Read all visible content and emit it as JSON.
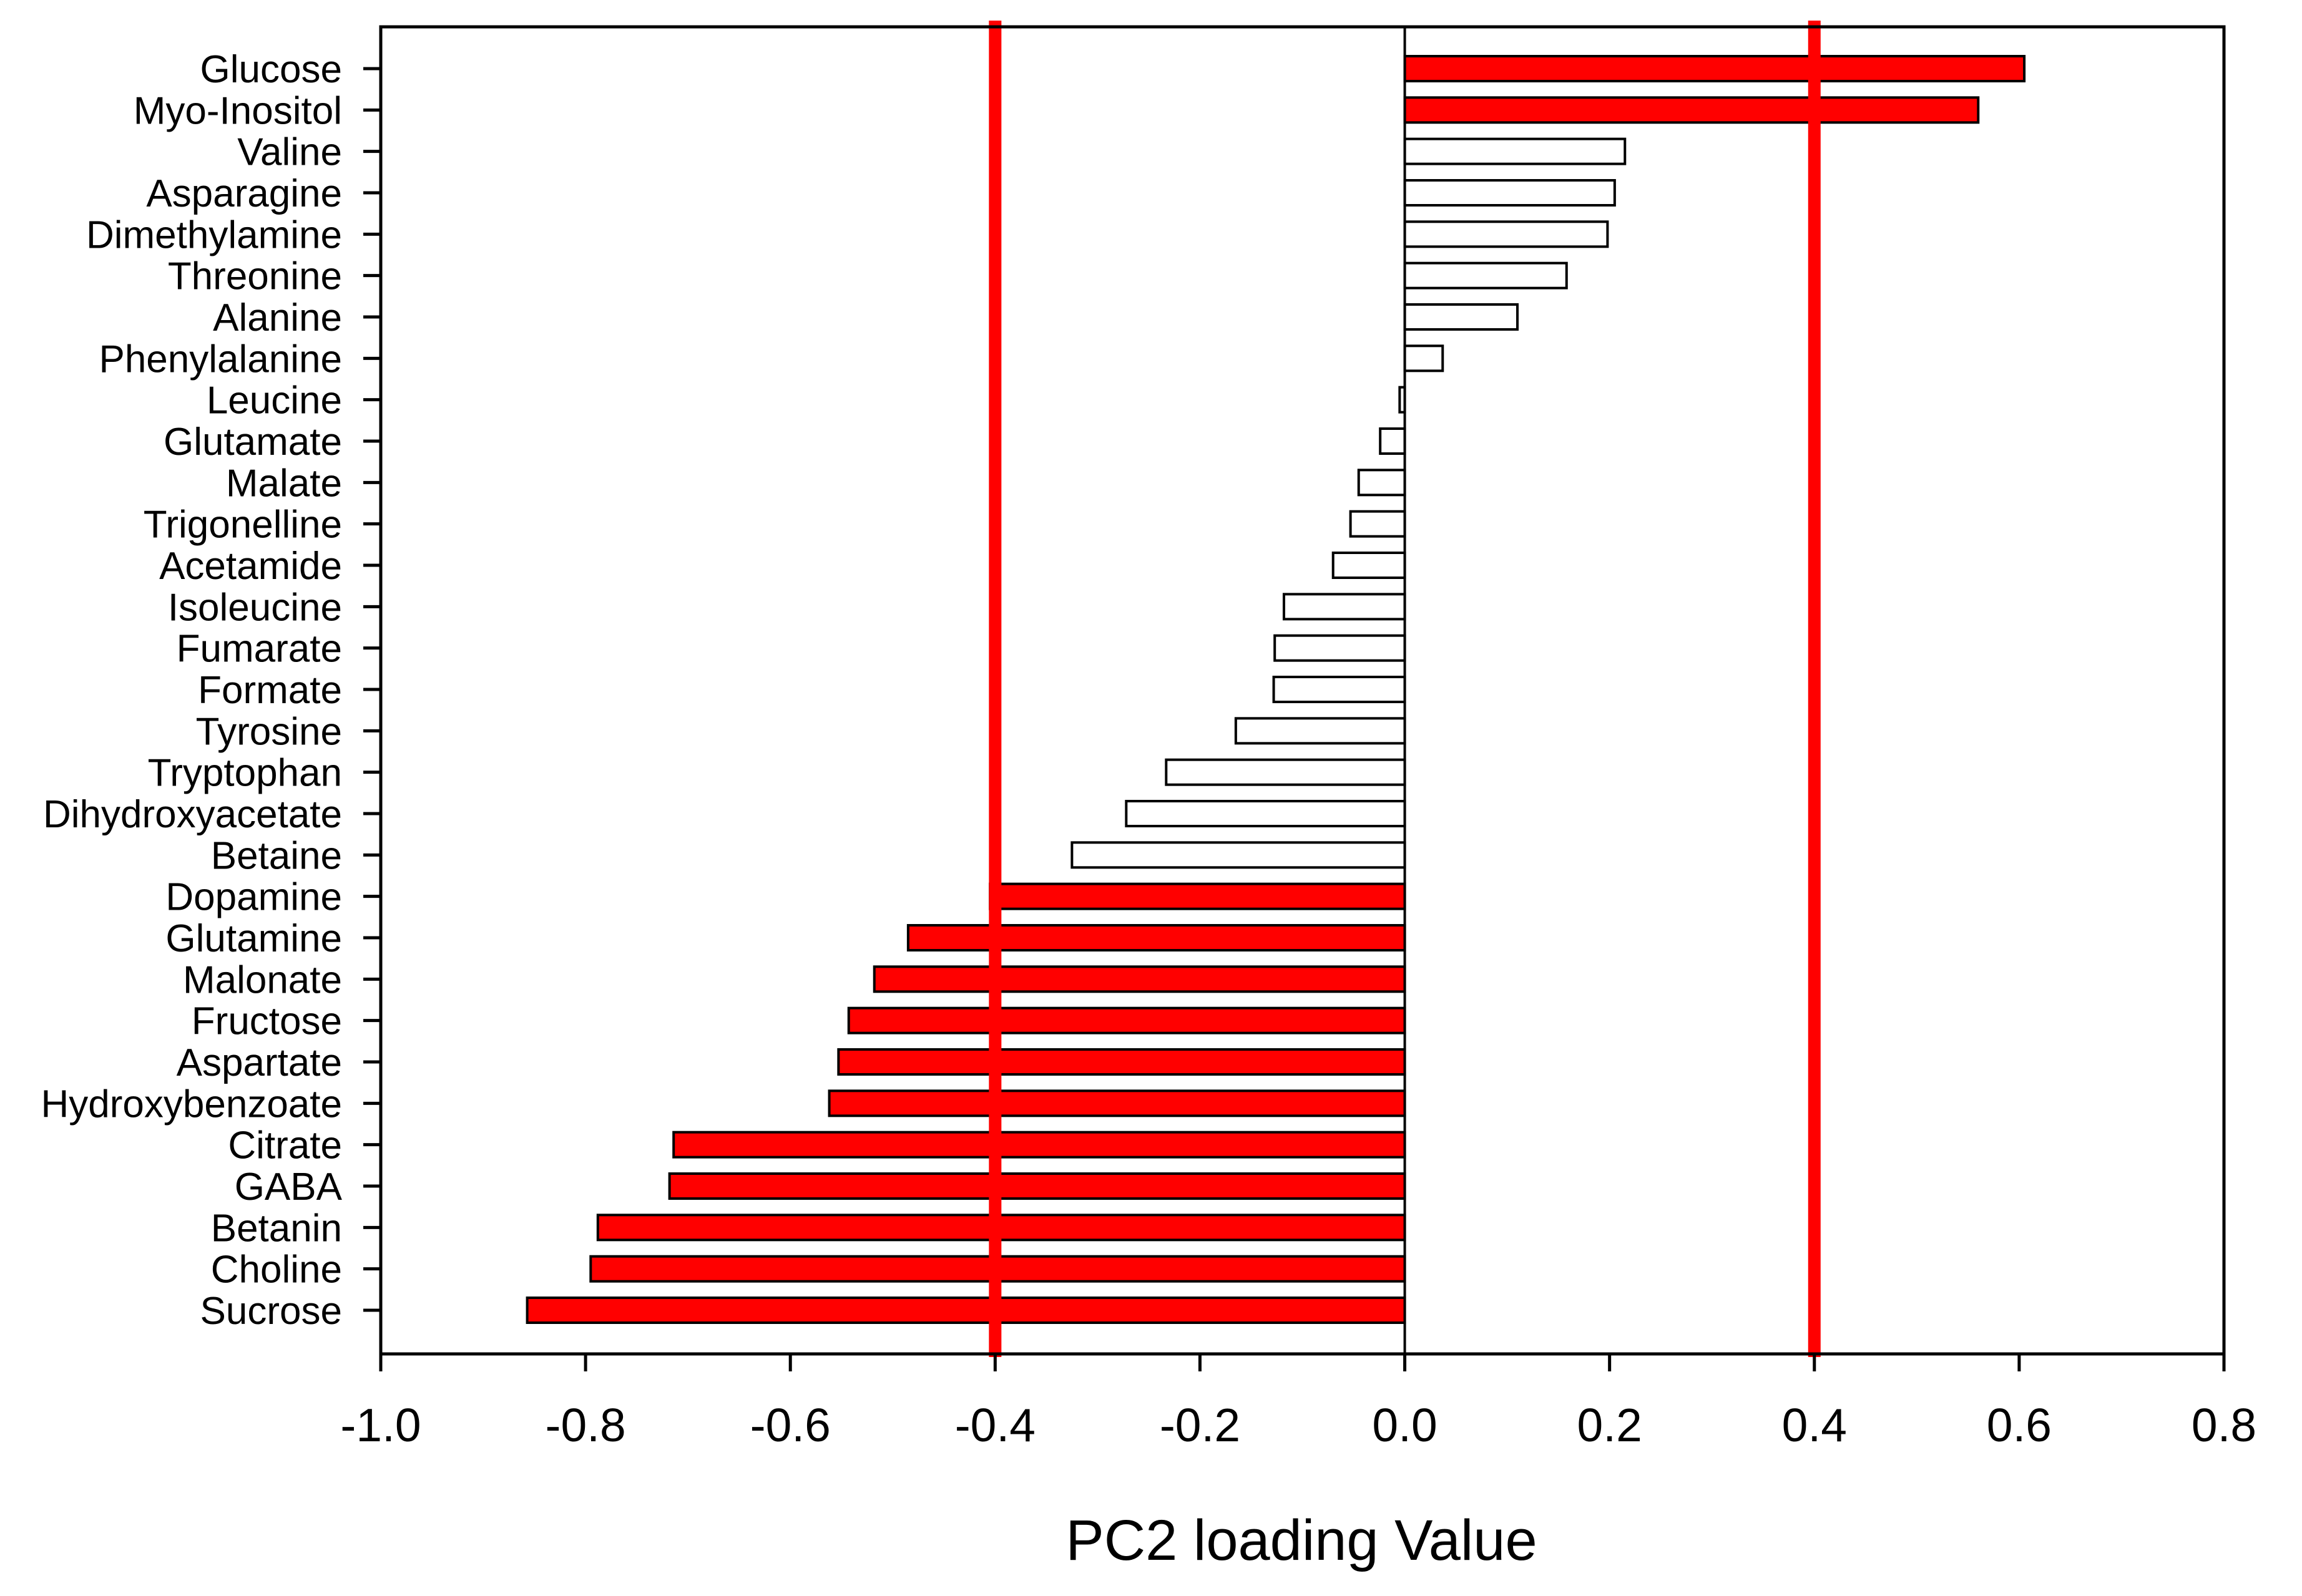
{
  "chart_data": {
    "type": "bar",
    "orientation": "horizontal",
    "title": "",
    "xlabel": "PC2 loading Value",
    "ylabel": "",
    "xlim": [
      -1.0,
      0.8
    ],
    "xticks": [
      -1.0,
      -0.8,
      -0.6,
      -0.4,
      -0.2,
      0.0,
      0.2,
      0.4,
      0.6,
      0.8
    ],
    "xtick_labels": [
      "-1.0",
      "-0.8",
      "-0.6",
      "-0.4",
      "-0.2",
      "0.0",
      "0.2",
      "0.4",
      "0.6",
      "0.8"
    ],
    "threshold_lines": [
      -0.4,
      0.4
    ],
    "threshold_color": "#ff0000",
    "highlight_color": "#ff0000",
    "normal_color": "#ffffff",
    "grid": false,
    "categories": [
      "Glucose",
      "Myo-Inositol",
      "Valine",
      "Asparagine",
      "Dimethylamine",
      "Threonine",
      "Alanine",
      "Phenylalanine",
      "Leucine",
      "Glutamate",
      "Malate",
      "Trigonelline",
      "Acetamide",
      "Isoleucine",
      "Fumarate",
      "Formate",
      "Tyrosine",
      "Tryptophan",
      "Dihydroxyacetate",
      "Betaine",
      "Dopamine",
      "Glutamine",
      "Malonate",
      "Fructose",
      "Aspartate",
      "Hydroxybenzoate",
      "Citrate",
      "GABA",
      "Betanin",
      "Choline",
      "Sucrose"
    ],
    "values": [
      0.605,
      0.56,
      0.215,
      0.205,
      0.198,
      0.158,
      0.11,
      0.037,
      -0.005,
      -0.024,
      -0.045,
      -0.053,
      -0.07,
      -0.118,
      -0.127,
      -0.128,
      -0.165,
      -0.233,
      -0.272,
      -0.325,
      -0.405,
      -0.485,
      -0.518,
      -0.543,
      -0.553,
      -0.562,
      -0.714,
      -0.718,
      -0.788,
      -0.795,
      -0.857
    ],
    "highlighted": [
      true,
      true,
      false,
      false,
      false,
      false,
      false,
      false,
      false,
      false,
      false,
      false,
      false,
      false,
      false,
      false,
      false,
      false,
      false,
      false,
      true,
      true,
      true,
      true,
      true,
      true,
      true,
      true,
      true,
      true,
      true
    ]
  }
}
